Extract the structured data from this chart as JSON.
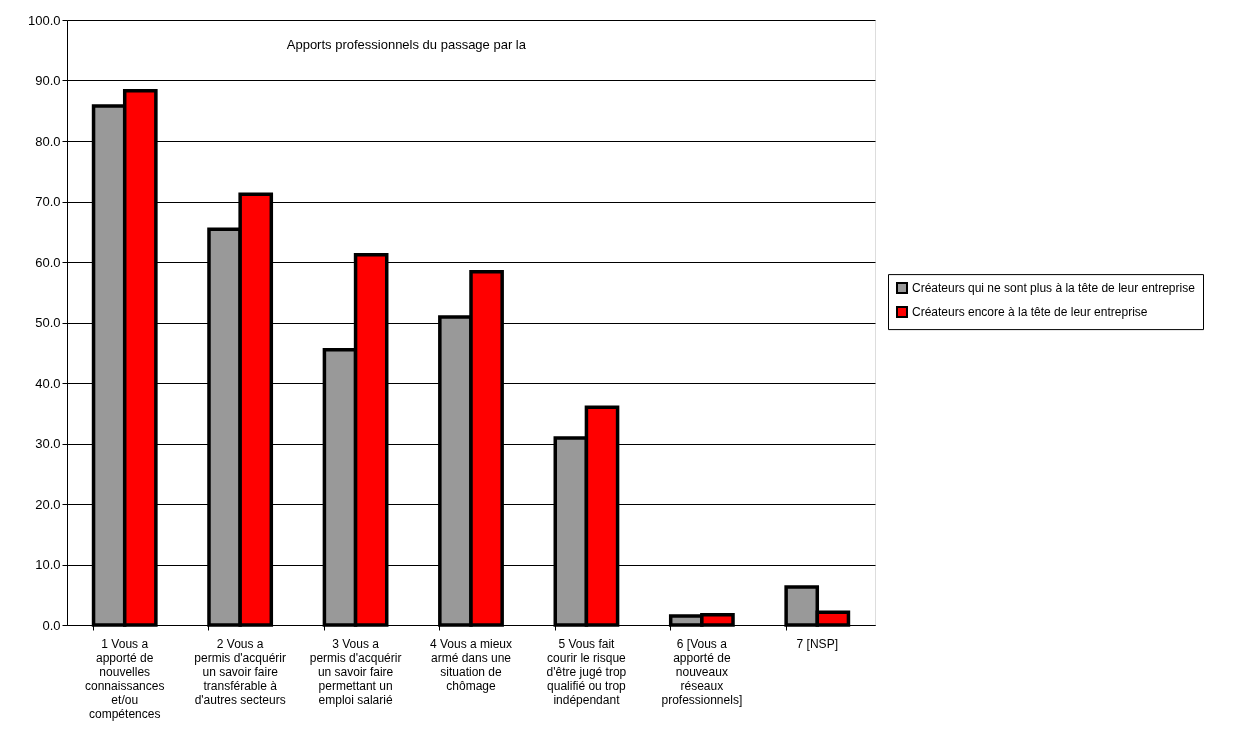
{
  "chart_data": {
    "type": "bar",
    "title": "Apports professionnels du passage par la",
    "categories": [
      "1  Vous a\napporté de\nnouvelles\nconnaissances\net/ou\ncompétences",
      "2  Vous a\npermis d'acquérir\nun savoir faire\ntransférable à\nd'autres secteurs",
      "3  Vous a\npermis d'acquérir\nun savoir faire\npermettant un\nemploi salarié",
      "4  Vous a mieux\narmé dans une\nsituation de\nchômage",
      "5  Vous fait\ncourir le risque\nd'être jugé trop\nqualifié ou trop\nindépendant",
      "6  [Vous a\napporté de\nnouveaux\nréseaux\nprofessionnels]",
      "7  [NSP]"
    ],
    "series": [
      {
        "name": "Créateurs qui ne sont plus à la tête de leur entreprise",
        "color": "#999999",
        "values": [
          85.8,
          65.4,
          45.5,
          50.9,
          30.9,
          1.5,
          6.3
        ]
      },
      {
        "name": "Créateurs encore à la tête de leur entreprise",
        "color": "#ff0000",
        "values": [
          88.3,
          71.2,
          61.2,
          58.4,
          36.0,
          1.7,
          2.1
        ]
      }
    ],
    "ylim": [
      0,
      100
    ],
    "yticks": [
      {
        "value": 0,
        "label": "0.0"
      },
      {
        "value": 10,
        "label": "10.0"
      },
      {
        "value": 20,
        "label": "20.0"
      },
      {
        "value": 30,
        "label": "30.0"
      },
      {
        "value": 40,
        "label": "40.0"
      },
      {
        "value": 50,
        "label": "50.0"
      },
      {
        "value": 60,
        "label": "60.0"
      },
      {
        "value": 70,
        "label": "70.0"
      },
      {
        "value": 80,
        "label": "80.0"
      },
      {
        "value": 90,
        "label": "90.0"
      },
      {
        "value": 100,
        "label": "100.0"
      }
    ],
    "grid": "y",
    "legend": "right"
  }
}
